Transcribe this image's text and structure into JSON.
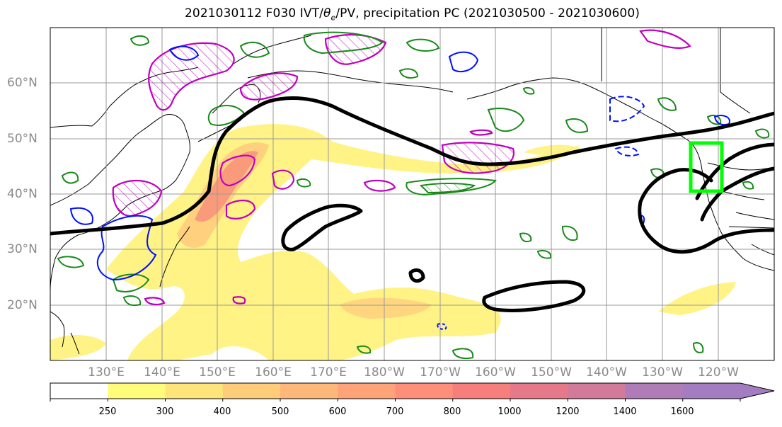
{
  "title": {
    "prefix": "2021030112 F030 IVT/",
    "theta": "θ",
    "theta_sub": "e",
    "suffix": "/PV, precipitation PC (2021030500 - 2021030600)"
  },
  "lat_labels": [
    "60°N",
    "50°N",
    "40°N",
    "30°N",
    "20°N"
  ],
  "lon_labels": [
    "130°E",
    "140°E",
    "150°E",
    "160°E",
    "170°E",
    "180°W",
    "170°W",
    "160°W",
    "150°W",
    "140°W",
    "130°W",
    "120°W"
  ],
  "colorbar": {
    "ticks": [
      "250",
      "300",
      "400",
      "500",
      "600",
      "700",
      "800",
      "1000",
      "1200",
      "1400",
      "1600"
    ],
    "colors": [
      "#ffffff",
      "#fffc7a",
      "#ffe579",
      "#ffcd79",
      "#ffb879",
      "#ffa378",
      "#ff8f78",
      "#f77f7b",
      "#e57889",
      "#d27a99",
      "#b07cb8",
      "#a47cc2"
    ]
  },
  "contour_colors": {
    "ivt_fill_low": "#fff27f",
    "ivt_fill_mid": "#ffc97c",
    "ivt_fill_high": "#f78a7b",
    "theta_e": "#000000",
    "pv_positive": "#c000c0",
    "precip_pc_positive": "#1a8a1a",
    "precip_pc_negative": "#0010ff",
    "target_box": "#00ff00"
  }
}
